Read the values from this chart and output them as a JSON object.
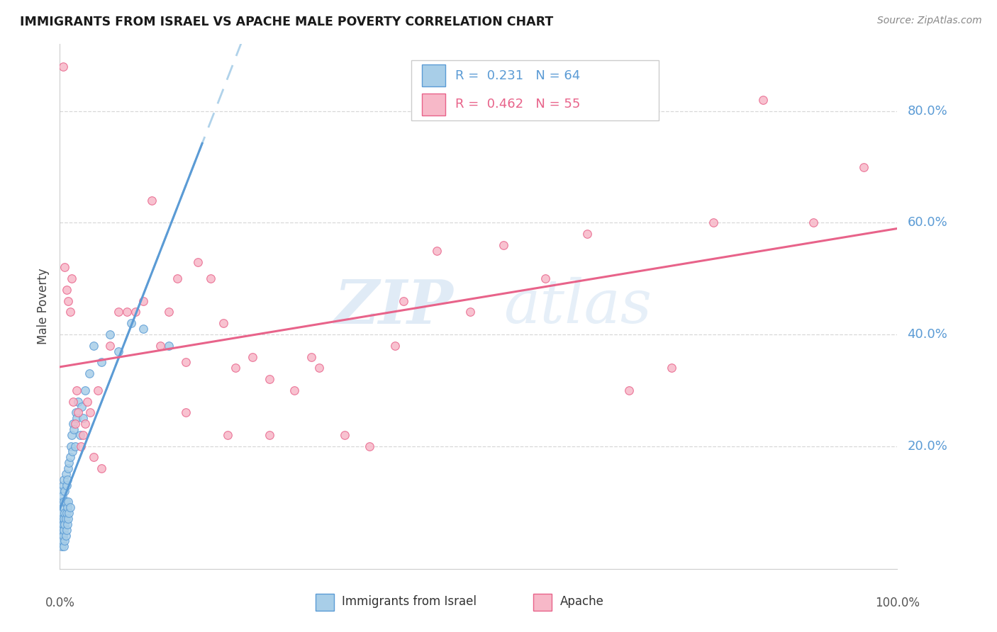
{
  "title": "IMMIGRANTS FROM ISRAEL VS APACHE MALE POVERTY CORRELATION CHART",
  "source": "Source: ZipAtlas.com",
  "ylabel": "Male Poverty",
  "ytick_labels": [
    "20.0%",
    "40.0%",
    "60.0%",
    "80.0%"
  ],
  "ytick_values": [
    0.2,
    0.4,
    0.6,
    0.8
  ],
  "xlim": [
    0.0,
    1.0
  ],
  "ylim": [
    -0.02,
    0.92
  ],
  "legend_r1": "R =  0.231   N = 64",
  "legend_r2": "R =  0.462   N = 55",
  "israel_color": "#A8CEE8",
  "apache_color": "#F7B8C8",
  "israel_edge_color": "#5B9BD5",
  "apache_edge_color": "#E8638A",
  "israel_line_color": "#5B9BD5",
  "apache_line_color": "#E8638A",
  "israel_dash_color": "#A8CEE8",
  "watermark_zip": "ZIP",
  "watermark_atlas": "atlas",
  "israel_x": [
    0.001,
    0.001,
    0.001,
    0.001,
    0.002,
    0.002,
    0.002,
    0.002,
    0.002,
    0.003,
    0.003,
    0.003,
    0.003,
    0.004,
    0.004,
    0.004,
    0.004,
    0.005,
    0.005,
    0.005,
    0.005,
    0.005,
    0.006,
    0.006,
    0.006,
    0.006,
    0.007,
    0.007,
    0.007,
    0.007,
    0.008,
    0.008,
    0.008,
    0.009,
    0.009,
    0.009,
    0.01,
    0.01,
    0.01,
    0.011,
    0.011,
    0.012,
    0.012,
    0.013,
    0.014,
    0.015,
    0.016,
    0.017,
    0.018,
    0.019,
    0.02,
    0.022,
    0.024,
    0.026,
    0.028,
    0.03,
    0.035,
    0.04,
    0.05,
    0.06,
    0.07,
    0.085,
    0.1,
    0.13
  ],
  "israel_y": [
    0.03,
    0.05,
    0.07,
    0.1,
    0.02,
    0.04,
    0.06,
    0.08,
    0.12,
    0.03,
    0.05,
    0.07,
    0.11,
    0.04,
    0.06,
    0.09,
    0.13,
    0.02,
    0.05,
    0.07,
    0.1,
    0.14,
    0.03,
    0.06,
    0.08,
    0.12,
    0.04,
    0.07,
    0.1,
    0.15,
    0.05,
    0.08,
    0.13,
    0.06,
    0.09,
    0.14,
    0.07,
    0.1,
    0.16,
    0.08,
    0.17,
    0.09,
    0.18,
    0.2,
    0.22,
    0.19,
    0.24,
    0.23,
    0.2,
    0.26,
    0.25,
    0.28,
    0.22,
    0.27,
    0.25,
    0.3,
    0.33,
    0.38,
    0.35,
    0.4,
    0.37,
    0.42,
    0.41,
    0.38
  ],
  "apache_x": [
    0.004,
    0.006,
    0.008,
    0.01,
    0.012,
    0.014,
    0.016,
    0.018,
    0.02,
    0.022,
    0.025,
    0.028,
    0.03,
    0.033,
    0.036,
    0.04,
    0.045,
    0.05,
    0.06,
    0.07,
    0.08,
    0.09,
    0.1,
    0.11,
    0.12,
    0.13,
    0.14,
    0.15,
    0.165,
    0.18,
    0.195,
    0.21,
    0.23,
    0.25,
    0.28,
    0.31,
    0.34,
    0.37,
    0.41,
    0.45,
    0.49,
    0.53,
    0.58,
    0.63,
    0.68,
    0.73,
    0.78,
    0.84,
    0.9,
    0.96,
    0.15,
    0.2,
    0.25,
    0.3,
    0.4
  ],
  "apache_y": [
    0.88,
    0.52,
    0.48,
    0.46,
    0.44,
    0.5,
    0.28,
    0.24,
    0.3,
    0.26,
    0.2,
    0.22,
    0.24,
    0.28,
    0.26,
    0.18,
    0.3,
    0.16,
    0.38,
    0.44,
    0.44,
    0.44,
    0.46,
    0.64,
    0.38,
    0.44,
    0.5,
    0.35,
    0.53,
    0.5,
    0.42,
    0.34,
    0.36,
    0.22,
    0.3,
    0.34,
    0.22,
    0.2,
    0.46,
    0.55,
    0.44,
    0.56,
    0.5,
    0.58,
    0.3,
    0.34,
    0.6,
    0.82,
    0.6,
    0.7,
    0.26,
    0.22,
    0.32,
    0.36,
    0.38
  ]
}
